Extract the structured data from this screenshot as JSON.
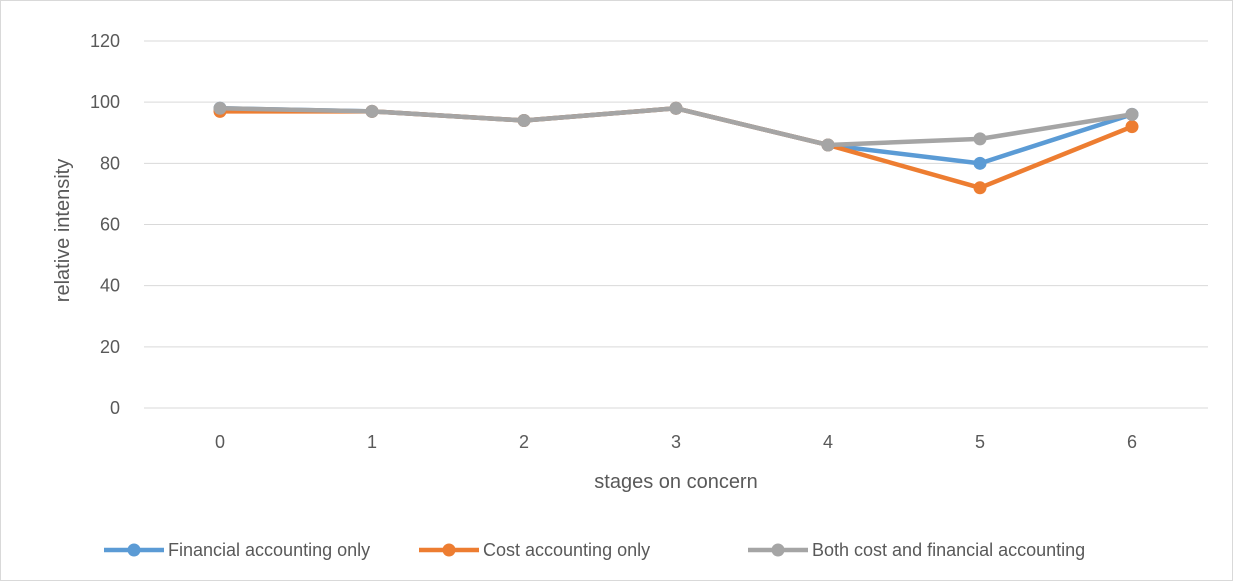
{
  "chart_data": {
    "type": "line",
    "title": "",
    "xlabel": "stages on concern",
    "ylabel": "relative intensity",
    "categories": [
      "0",
      "1",
      "2",
      "3",
      "4",
      "5",
      "6"
    ],
    "y_ticks": [
      "0",
      "20",
      "40",
      "60",
      "80",
      "100",
      "120"
    ],
    "ylim": [
      0,
      120
    ],
    "grid": true,
    "legend_position": "bottom",
    "series": [
      {
        "name": "Financial accounting only",
        "color": "#5b9bd5",
        "values": [
          98,
          97,
          94,
          98,
          86,
          80,
          96
        ]
      },
      {
        "name": "Cost accounting only",
        "color": "#ed7d31",
        "values": [
          97,
          97,
          94,
          98,
          86,
          72,
          92
        ]
      },
      {
        "name": "Both cost and financial accounting",
        "color": "#a5a5a5",
        "values": [
          98,
          97,
          94,
          98,
          86,
          88,
          96
        ]
      }
    ]
  }
}
